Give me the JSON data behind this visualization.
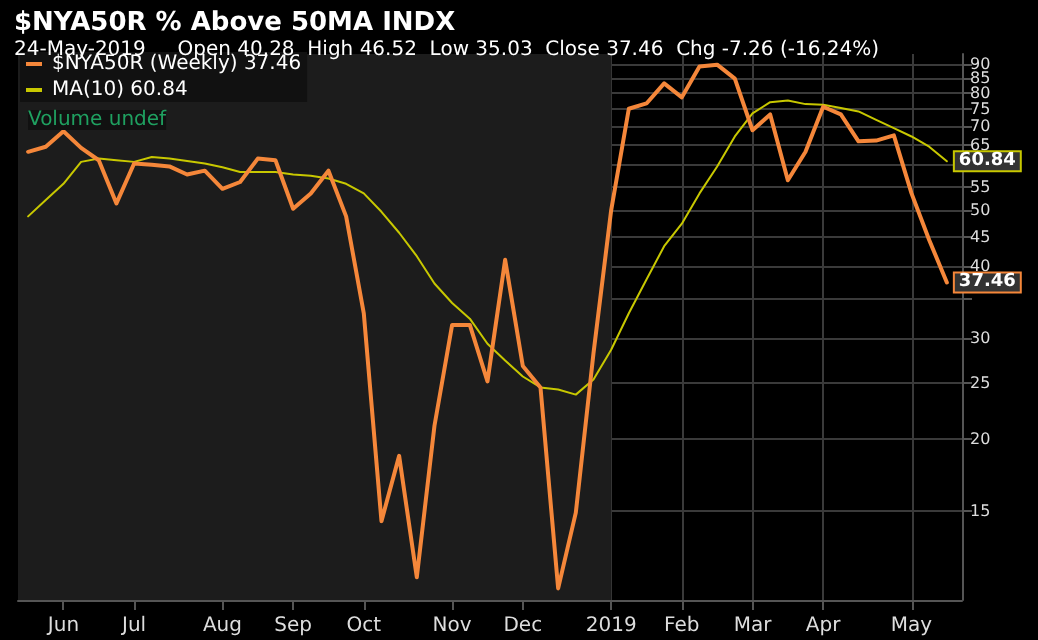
{
  "chart_data": {
    "type": "line",
    "title": "$NYA50R % Above 50MA INDX",
    "subtitle": "24-May-2019     Open 40.28  High 46.52  Low 35.03  Close 37.46  Chg -7.26 (-16.24%)",
    "x": [
      "2018-05-25",
      "2018-06-01",
      "2018-06-08",
      "2018-06-15",
      "2018-06-22",
      "2018-06-29",
      "2018-07-06",
      "2018-07-13",
      "2018-07-20",
      "2018-07-27",
      "2018-08-03",
      "2018-08-10",
      "2018-08-17",
      "2018-08-24",
      "2018-08-31",
      "2018-09-07",
      "2018-09-14",
      "2018-09-21",
      "2018-09-28",
      "2018-10-05",
      "2018-10-12",
      "2018-10-19",
      "2018-10-26",
      "2018-11-02",
      "2018-11-09",
      "2018-11-16",
      "2018-11-23",
      "2018-11-30",
      "2018-12-07",
      "2018-12-14",
      "2018-12-21",
      "2018-12-28",
      "2019-01-04",
      "2019-01-11",
      "2019-01-18",
      "2019-01-25",
      "2019-02-01",
      "2019-02-08",
      "2019-02-15",
      "2019-02-22",
      "2019-03-01",
      "2019-03-08",
      "2019-03-15",
      "2019-03-22",
      "2019-03-29",
      "2019-04-05",
      "2019-04-12",
      "2019-04-19",
      "2019-04-26",
      "2019-05-03",
      "2019-05-10",
      "2019-05-17",
      "2019-05-24"
    ],
    "series": [
      {
        "name": "$NYA50R (Weekly) 37.46",
        "color": "#f5873a",
        "values": [
          63.2,
          64.5,
          68.6,
          64.2,
          61.1,
          51.4,
          60.3,
          60.0,
          59.6,
          57.7,
          58.6,
          54.5,
          56.0,
          61.5,
          61.1,
          50.3,
          53.5,
          58.6,
          48.8,
          33.1,
          14.4,
          18.7,
          11.5,
          21.1,
          31.6,
          31.6,
          25.2,
          41.0,
          26.8,
          24.6,
          11.0,
          14.9,
          28.2,
          50.0,
          75.1,
          76.7,
          83.1,
          78.6,
          88.9,
          89.6,
          84.7,
          68.9,
          73.4,
          56.4,
          63.2,
          75.7,
          73.4,
          65.9,
          66.1,
          67.5,
          53.5,
          44.4,
          37.46
        ],
        "value_labels": [
          null,
          null,
          null,
          null,
          null,
          null,
          null,
          null,
          null,
          null,
          null,
          null,
          null,
          null,
          null,
          null,
          null,
          null,
          null,
          null,
          null,
          null,
          null,
          null,
          null,
          null,
          null,
          null,
          null,
          null,
          null,
          null,
          null,
          null,
          null,
          null,
          null,
          null,
          null,
          null,
          null,
          null,
          null,
          null,
          null,
          null,
          null,
          null,
          null,
          null,
          null,
          null,
          "37.46"
        ]
      },
      {
        "name": "MA(10) 60.84",
        "color": "#c8c800",
        "values": [
          48.8,
          52.1,
          55.6,
          60.7,
          61.5,
          61.1,
          60.7,
          61.9,
          61.5,
          60.9,
          60.3,
          59.4,
          58.3,
          58.3,
          58.3,
          57.7,
          57.4,
          56.8,
          55.6,
          53.5,
          49.7,
          45.7,
          41.6,
          37.3,
          34.5,
          32.4,
          29.3,
          27.4,
          25.7,
          24.6,
          24.4,
          23.9,
          25.4,
          28.6,
          33.1,
          37.9,
          43.3,
          47.4,
          53.5,
          59.6,
          67.2,
          73.7,
          77.1,
          77.6,
          76.5,
          76.3,
          75.3,
          74.3,
          71.8,
          69.5,
          67.2,
          64.5,
          60.84
        ],
        "value_labels": [
          null,
          null,
          null,
          null,
          null,
          null,
          null,
          null,
          null,
          null,
          null,
          null,
          null,
          null,
          null,
          null,
          null,
          null,
          null,
          null,
          null,
          null,
          null,
          null,
          null,
          null,
          null,
          null,
          null,
          null,
          null,
          null,
          null,
          null,
          null,
          null,
          null,
          null,
          null,
          null,
          null,
          null,
          null,
          null,
          null,
          null,
          null,
          null,
          null,
          null,
          null,
          null,
          "60.84"
        ]
      }
    ],
    "xlim": [
      "2018-05-21",
      "2019-05-30"
    ],
    "xticks": [
      {
        "value": "2018-06-08",
        "label": "Jun"
      },
      {
        "value": "2018-07-06",
        "label": "Jul"
      },
      {
        "value": "2018-08-10",
        "label": "Aug"
      },
      {
        "value": "2018-09-07",
        "label": "Sep"
      },
      {
        "value": "2018-10-05",
        "label": "Oct"
      },
      {
        "value": "2018-11-09",
        "label": "Nov"
      },
      {
        "value": "2018-12-07",
        "label": "Dec"
      },
      {
        "value": "2019-01-11",
        "label": "2019"
      },
      {
        "value": "2019-02-08",
        "label": "Feb"
      },
      {
        "value": "2019-03-08",
        "label": "Mar"
      },
      {
        "value": "2019-04-05",
        "label": "Apr"
      },
      {
        "value": "2019-05-10",
        "label": "May"
      }
    ],
    "ylim": [
      10.5,
      93.5
    ],
    "yticks": [
      15,
      20,
      25,
      30,
      {
        "value": 35,
        "label": null
      },
      40,
      45,
      50,
      55,
      {
        "value": 60,
        "label": null
      },
      65,
      70,
      75,
      80,
      85,
      90
    ],
    "log": true,
    "grid": true,
    "legend": "top left",
    "marker": "none",
    "bands": [
      {
        "axis": "x",
        "from": "2018-05-21",
        "to": "2019-01-11",
        "color": "#1c1c1c"
      }
    ],
    "annotations": [
      "Volume undef"
    ]
  }
}
